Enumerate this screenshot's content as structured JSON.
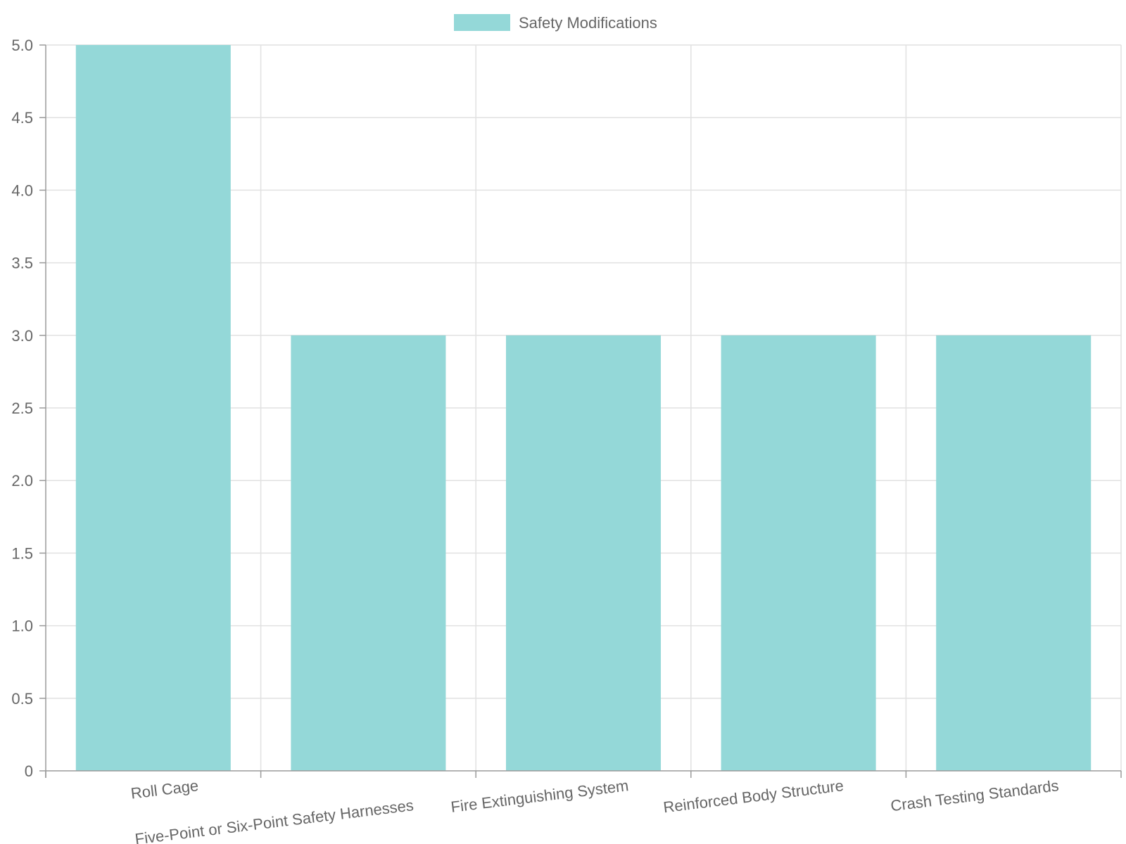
{
  "chart_data": {
    "type": "bar",
    "categories": [
      "Roll Cage",
      "Five-Point or Six-Point Safety Harnesses",
      "Fire Extinguishing System",
      "Reinforced Body Structure",
      "Crash Testing Standards"
    ],
    "series": [
      {
        "name": "Safety Modifications",
        "values": [
          5,
          3,
          3,
          3,
          3
        ]
      }
    ],
    "title": "",
    "xlabel": "",
    "ylabel": "",
    "ylim": [
      0,
      5
    ],
    "yticks": [
      "0",
      "0.5",
      "1.0",
      "1.5",
      "2.0",
      "2.5",
      "3.0",
      "3.5",
      "4.0",
      "4.5",
      "5.0"
    ],
    "grid": true,
    "legend_position": "top",
    "colors": {
      "bar_fill": "#94d8d8",
      "bar_stroke": "#7fcfcf"
    }
  }
}
